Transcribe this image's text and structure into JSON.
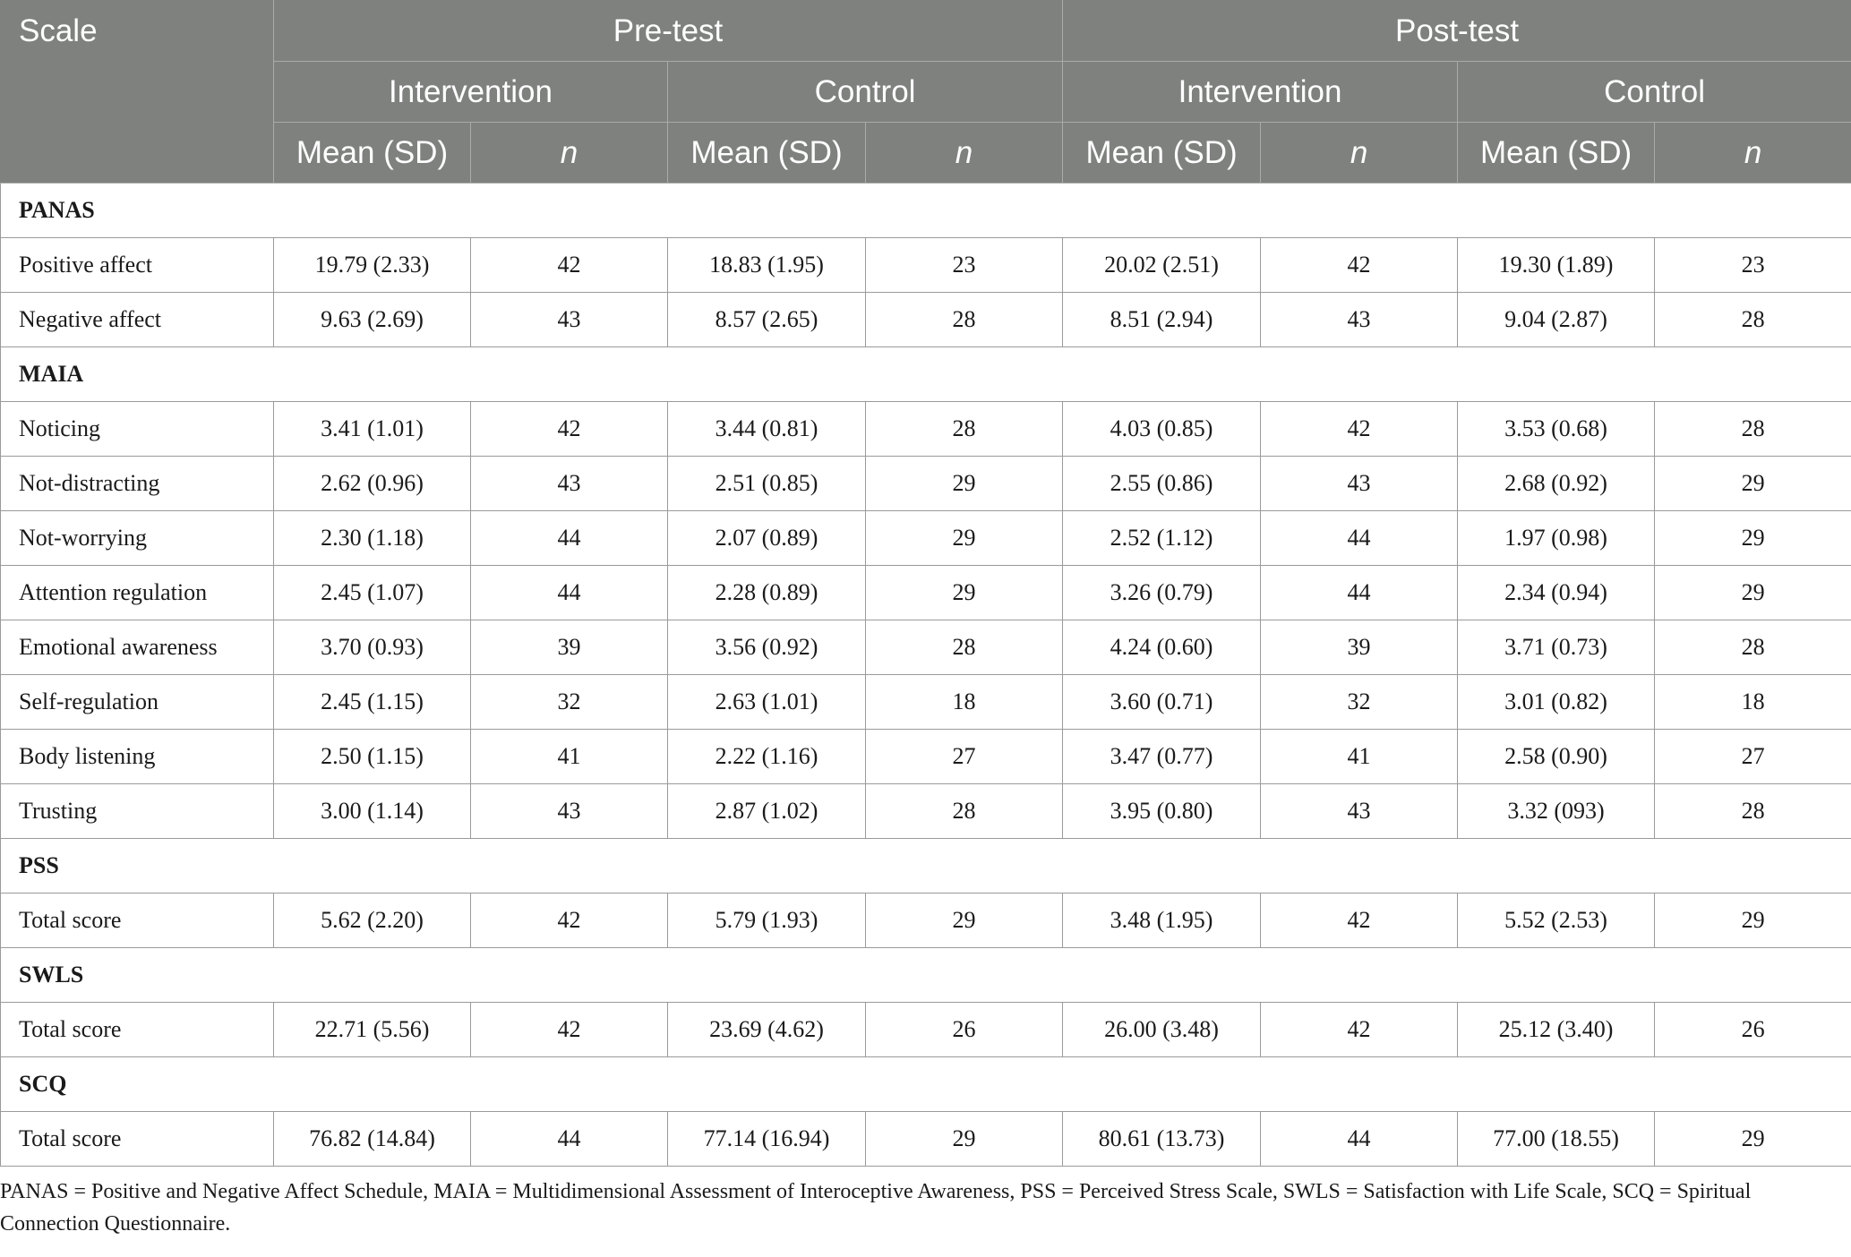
{
  "header": {
    "scale": "Scale",
    "pre_test": "Pre-test",
    "post_test": "Post-test",
    "intervention": "Intervention",
    "control": "Control",
    "mean_sd": "Mean (SD)",
    "n": "n"
  },
  "rows": [
    {
      "type": "section",
      "label": "PANAS"
    },
    {
      "type": "data",
      "label": "Positive affect",
      "cells": [
        "19.79 (2.33)",
        "42",
        "18.83 (1.95)",
        "23",
        "20.02 (2.51)",
        "42",
        "19.30 (1.89)",
        "23"
      ]
    },
    {
      "type": "data",
      "label": "Negative affect",
      "cells": [
        "9.63 (2.69)",
        "43",
        "8.57 (2.65)",
        "28",
        "8.51 (2.94)",
        "43",
        "9.04 (2.87)",
        "28"
      ]
    },
    {
      "type": "section",
      "label": "MAIA"
    },
    {
      "type": "data",
      "label": "Noticing",
      "cells": [
        "3.41 (1.01)",
        "42",
        "3.44 (0.81)",
        "28",
        "4.03 (0.85)",
        "42",
        "3.53 (0.68)",
        "28"
      ]
    },
    {
      "type": "data",
      "label": "Not-distracting",
      "cells": [
        "2.62 (0.96)",
        "43",
        "2.51 (0.85)",
        "29",
        "2.55 (0.86)",
        "43",
        "2.68 (0.92)",
        "29"
      ]
    },
    {
      "type": "data",
      "label": "Not-worrying",
      "cells": [
        "2.30 (1.18)",
        "44",
        "2.07 (0.89)",
        "29",
        "2.52 (1.12)",
        "44",
        "1.97 (0.98)",
        "29"
      ]
    },
    {
      "type": "data",
      "label": "Attention regulation",
      "cells": [
        "2.45 (1.07)",
        "44",
        "2.28 (0.89)",
        "29",
        "3.26 (0.79)",
        "44",
        "2.34 (0.94)",
        "29"
      ]
    },
    {
      "type": "data",
      "label": "Emotional awareness",
      "cells": [
        "3.70 (0.93)",
        "39",
        "3.56 (0.92)",
        "28",
        "4.24 (0.60)",
        "39",
        "3.71 (0.73)",
        "28"
      ]
    },
    {
      "type": "data",
      "label": "Self-regulation",
      "cells": [
        "2.45 (1.15)",
        "32",
        "2.63 (1.01)",
        "18",
        "3.60 (0.71)",
        "32",
        "3.01 (0.82)",
        "18"
      ]
    },
    {
      "type": "data",
      "label": "Body listening",
      "cells": [
        "2.50 (1.15)",
        "41",
        "2.22 (1.16)",
        "27",
        "3.47 (0.77)",
        "41",
        "2.58 (0.90)",
        "27"
      ]
    },
    {
      "type": "data",
      "label": "Trusting",
      "cells": [
        "3.00 (1.14)",
        "43",
        "2.87 (1.02)",
        "28",
        "3.95 (0.80)",
        "43",
        "3.32 (093)",
        "28"
      ]
    },
    {
      "type": "section",
      "label": "PSS"
    },
    {
      "type": "data",
      "label": "Total score",
      "cells": [
        "5.62 (2.20)",
        "42",
        "5.79 (1.93)",
        "29",
        "3.48 (1.95)",
        "42",
        "5.52 (2.53)",
        "29"
      ]
    },
    {
      "type": "section",
      "label": "SWLS"
    },
    {
      "type": "data",
      "label": "Total score",
      "cells": [
        "22.71 (5.56)",
        "42",
        "23.69 (4.62)",
        "26",
        "26.00 (3.48)",
        "42",
        "25.12 (3.40)",
        "26"
      ]
    },
    {
      "type": "section",
      "label": "SCQ"
    },
    {
      "type": "data",
      "label": "Total score",
      "cells": [
        "76.82 (14.84)",
        "44",
        "77.14 (16.94)",
        "29",
        "80.61 (13.73)",
        "44",
        "77.00 (18.55)",
        "29"
      ]
    }
  ],
  "footnote": "PANAS = Positive and Negative Affect Schedule, MAIA = Multidimensional Assessment of Interoceptive Awareness, PSS = Perceived Stress Scale, SWLS = Satisfaction with Life Scale, SCQ = Spiritual Connection Questionnaire."
}
